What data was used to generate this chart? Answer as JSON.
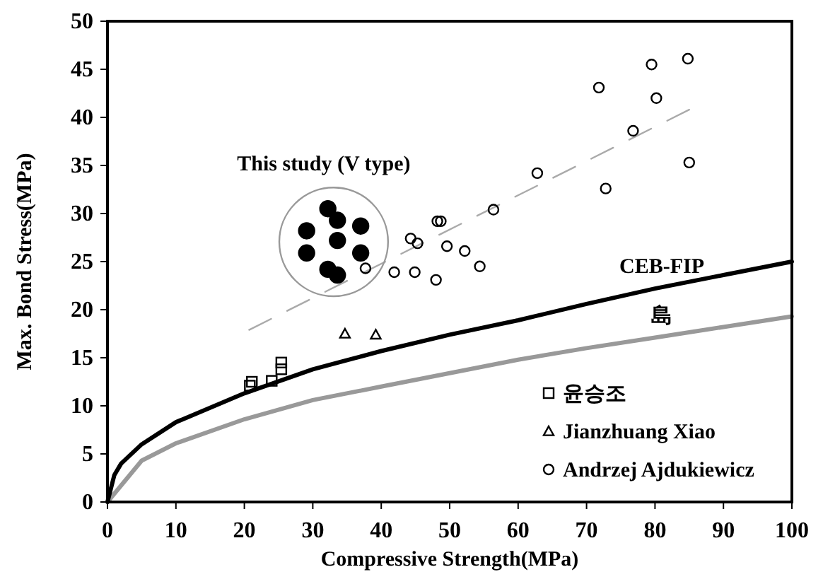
{
  "chart_data": {
    "type": "scatter",
    "xlabel": "Compressive Strength(MPa)",
    "ylabel": "Max. Bond Stress(MPa)",
    "xlim": [
      0,
      100
    ],
    "ylim": [
      0,
      50
    ],
    "xticks": [
      0,
      10,
      20,
      30,
      40,
      50,
      60,
      70,
      80,
      90,
      100
    ],
    "yticks": [
      0,
      5,
      10,
      15,
      20,
      25,
      30,
      35,
      40,
      45,
      50
    ],
    "grid": false,
    "legend": "bottom right",
    "series": [
      {
        "type": "line",
        "name": "島",
        "color": "#999999",
        "line_style": "solid",
        "marker": "none",
        "x": [
          0,
          5,
          10,
          20,
          30,
          40,
          50,
          60,
          70,
          80,
          90,
          100
        ],
        "values": [
          0,
          4.3,
          6.1,
          8.6,
          10.6,
          12.0,
          13.4,
          14.8,
          16.0,
          17.1,
          18.2,
          19.3
        ]
      },
      {
        "type": "line",
        "name": "CEB-FIP",
        "color": "#000000",
        "line_style": "solid",
        "marker": "none",
        "x": [
          0,
          1,
          2,
          5,
          10,
          20,
          30,
          40,
          50,
          60,
          70,
          80,
          90,
          100
        ],
        "values": [
          0,
          2.8,
          4.0,
          6.0,
          8.3,
          11.3,
          13.8,
          15.7,
          17.4,
          18.9,
          20.6,
          22.2,
          23.6,
          25.0
        ]
      },
      {
        "type": "line",
        "color": "#aaaaaa",
        "line_style": "dashed",
        "marker": "none",
        "x": [
          20.7,
          85.0
        ],
        "values": [
          17.9,
          40.8
        ]
      },
      {
        "name": "This study (V type)",
        "color": "#000000",
        "marker": "circle",
        "x": [
          29.1,
          32.2,
          33.6,
          37.0,
          29.1,
          33.6,
          37.0,
          32.2,
          33.6
        ],
        "values": [
          28.2,
          30.5,
          29.3,
          28.7,
          25.9,
          27.2,
          25.9,
          24.2,
          23.6
        ]
      },
      {
        "name": "윤승조",
        "color": "#000000",
        "marker": "square",
        "x": [
          21.1,
          20.8,
          24.0,
          25.4,
          25.4
        ],
        "values": [
          12.5,
          12.1,
          12.6,
          14.5,
          13.8
        ]
      },
      {
        "name": "Jianzhuang Xiao",
        "color": "#000000",
        "marker": "triangle",
        "x": [
          34.7,
          39.2
        ],
        "values": [
          17.5,
          17.4
        ]
      },
      {
        "name": "Andrzej Ajdukiewicz",
        "color": "#000000",
        "marker": "circle",
        "x": [
          62.8,
          56.4,
          48.2,
          48.7,
          44.3,
          45.3,
          49.6,
          52.2,
          54.4,
          37.7,
          41.9,
          44.9,
          48.0,
          84.8,
          79.5,
          71.8,
          80.2,
          76.8,
          85.0,
          72.8
        ],
        "values": [
          34.2,
          30.4,
          29.2,
          29.2,
          27.4,
          26.9,
          26.6,
          26.1,
          24.5,
          24.3,
          23.9,
          23.9,
          23.1,
          46.1,
          45.5,
          43.1,
          42.0,
          38.6,
          35.3,
          32.6
        ]
      }
    ]
  }
}
